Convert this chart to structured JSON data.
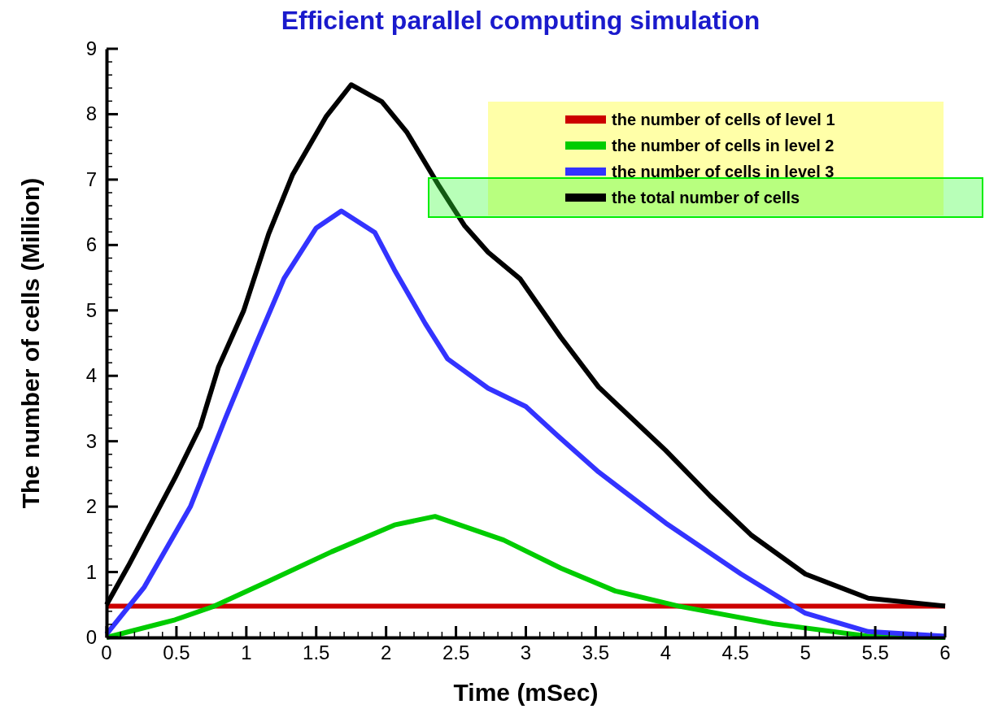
{
  "chart_data": {
    "type": "line",
    "title": "Efficient parallel computing simulation",
    "xlabel": "Time (mSec)",
    "ylabel": "The number of cells (Million)",
    "xlim": [
      0,
      6
    ],
    "ylim": [
      0,
      9
    ],
    "xticks": [
      0,
      {
        "value": 0.1,
        "label": null
      },
      {
        "value": 0.2,
        "label": null
      },
      {
        "value": 0.3,
        "label": null
      },
      {
        "value": 0.4,
        "label": null
      },
      0.5,
      {
        "value": 0.6,
        "label": null
      },
      {
        "value": 0.7,
        "label": null
      },
      {
        "value": 0.8,
        "label": null
      },
      {
        "value": 0.9,
        "label": null
      },
      1,
      {
        "value": 1.1,
        "label": null
      },
      {
        "value": 1.2,
        "label": null
      },
      {
        "value": 1.3,
        "label": null
      },
      {
        "value": 1.4,
        "label": null
      },
      1.5,
      {
        "value": 1.6,
        "label": null
      },
      {
        "value": 1.7,
        "label": null
      },
      {
        "value": 1.8,
        "label": null
      },
      {
        "value": 1.9,
        "label": null
      },
      2,
      {
        "value": 2.1,
        "label": null
      },
      {
        "value": 2.2,
        "label": null
      },
      {
        "value": 2.3,
        "label": null
      },
      {
        "value": 2.4,
        "label": null
      },
      2.5,
      {
        "value": 2.6,
        "label": null
      },
      {
        "value": 2.7,
        "label": null
      },
      {
        "value": 2.8,
        "label": null
      },
      {
        "value": 2.9,
        "label": null
      },
      3,
      {
        "value": 3.1,
        "label": null
      },
      {
        "value": 3.2,
        "label": null
      },
      {
        "value": 3.3,
        "label": null
      },
      {
        "value": 3.4,
        "label": null
      },
      3.5,
      {
        "value": 3.6,
        "label": null
      },
      {
        "value": 3.7,
        "label": null
      },
      {
        "value": 3.8,
        "label": null
      },
      {
        "value": 3.9,
        "label": null
      },
      4,
      {
        "value": 4.1,
        "label": null
      },
      {
        "value": 4.2,
        "label": null
      },
      {
        "value": 4.3,
        "label": null
      },
      {
        "value": 4.4,
        "label": null
      },
      4.5,
      {
        "value": 4.6,
        "label": null
      },
      {
        "value": 4.7,
        "label": null
      },
      {
        "value": 4.8,
        "label": null
      },
      {
        "value": 4.9,
        "label": null
      },
      5,
      {
        "value": 5.1,
        "label": null
      },
      {
        "value": 5.2,
        "label": null
      },
      {
        "value": 5.3,
        "label": null
      },
      {
        "value": 5.4,
        "label": null
      },
      5.5,
      {
        "value": 5.6,
        "label": null
      },
      {
        "value": 5.7,
        "label": null
      },
      {
        "value": 5.8,
        "label": null
      },
      {
        "value": 5.9,
        "label": null
      },
      6
    ],
    "yticks": [
      0,
      {
        "value": 0.2,
        "label": null
      },
      {
        "value": 0.4,
        "label": null
      },
      {
        "value": 0.6,
        "label": null
      },
      {
        "value": 0.8,
        "label": null
      },
      1,
      {
        "value": 1.2,
        "label": null
      },
      {
        "value": 1.4,
        "label": null
      },
      {
        "value": 1.6,
        "label": null
      },
      {
        "value": 1.8,
        "label": null
      },
      2,
      {
        "value": 2.2,
        "label": null
      },
      {
        "value": 2.4,
        "label": null
      },
      {
        "value": 2.6,
        "label": null
      },
      {
        "value": 2.8,
        "label": null
      },
      3,
      {
        "value": 3.2,
        "label": null
      },
      {
        "value": 3.4,
        "label": null
      },
      {
        "value": 3.6,
        "label": null
      },
      {
        "value": 3.8,
        "label": null
      },
      4,
      {
        "value": 4.2,
        "label": null
      },
      {
        "value": 4.4,
        "label": null
      },
      {
        "value": 4.6,
        "label": null
      },
      {
        "value": 4.8,
        "label": null
      },
      5,
      {
        "value": 5.2,
        "label": null
      },
      {
        "value": 5.4,
        "label": null
      },
      {
        "value": 5.6,
        "label": null
      },
      {
        "value": 5.8,
        "label": null
      },
      6,
      {
        "value": 6.2,
        "label": null
      },
      {
        "value": 6.4,
        "label": null
      },
      {
        "value": 6.6,
        "label": null
      },
      {
        "value": 6.8,
        "label": null
      },
      7,
      {
        "value": 7.2,
        "label": null
      },
      {
        "value": 7.4,
        "label": null
      },
      {
        "value": 7.6,
        "label": null
      },
      {
        "value": 7.8,
        "label": null
      },
      8,
      {
        "value": 8.2,
        "label": null
      },
      {
        "value": 8.4,
        "label": null
      },
      {
        "value": 8.6,
        "label": null
      },
      {
        "value": 8.8,
        "label": null
      },
      9
    ],
    "grid": false,
    "legend": "top right",
    "marker": "none",
    "line_style": "solid",
    "series": [
      {
        "name": "the number of cells of level 1",
        "color": "#cc0000",
        "x": [
          0,
          6
        ],
        "values": [
          0.48,
          0.48
        ]
      },
      {
        "name": "the number of cells in level 2",
        "color": "#00cc00",
        "x": [
          0,
          0.49,
          0.76,
          1.16,
          1.61,
          2.06,
          2.35,
          2.84,
          3.25,
          3.64,
          4.09,
          4.77,
          5.45,
          6
        ],
        "values": [
          0,
          0.27,
          0.47,
          0.86,
          1.31,
          1.72,
          1.85,
          1.49,
          1.06,
          0.71,
          0.48,
          0.21,
          0.02,
          0
        ]
      },
      {
        "name": "the number of cells in level 3",
        "color": "#3333ff",
        "x": [
          0,
          0.27,
          0.6,
          0.85,
          1.07,
          1.27,
          1.5,
          1.68,
          1.92,
          2.06,
          2.28,
          2.44,
          2.73,
          3.0,
          3.23,
          3.52,
          4.0,
          4.54,
          5.0,
          5.45,
          6
        ],
        "values": [
          0.05,
          0.77,
          2.0,
          3.35,
          4.49,
          5.49,
          6.26,
          6.52,
          6.19,
          5.62,
          4.8,
          4.26,
          3.81,
          3.53,
          3.08,
          2.53,
          1.75,
          0.97,
          0.37,
          0.09,
          0.02
        ]
      },
      {
        "name": "the total number of cells",
        "color": "#000000",
        "x": [
          0,
          0.155,
          0.49,
          0.67,
          0.8,
          0.98,
          1.16,
          1.33,
          1.57,
          1.75,
          1.97,
          2.15,
          2.38,
          2.56,
          2.73,
          2.96,
          3.25,
          3.52,
          4.0,
          4.32,
          4.61,
          5.0,
          5.45,
          6
        ],
        "values": [
          0.5,
          1.09,
          2.44,
          3.22,
          4.13,
          4.99,
          6.17,
          7.07,
          7.96,
          8.45,
          8.19,
          7.72,
          6.9,
          6.3,
          5.89,
          5.48,
          4.59,
          3.83,
          2.86,
          2.16,
          1.57,
          0.97,
          0.6,
          0.48
        ]
      }
    ]
  }
}
